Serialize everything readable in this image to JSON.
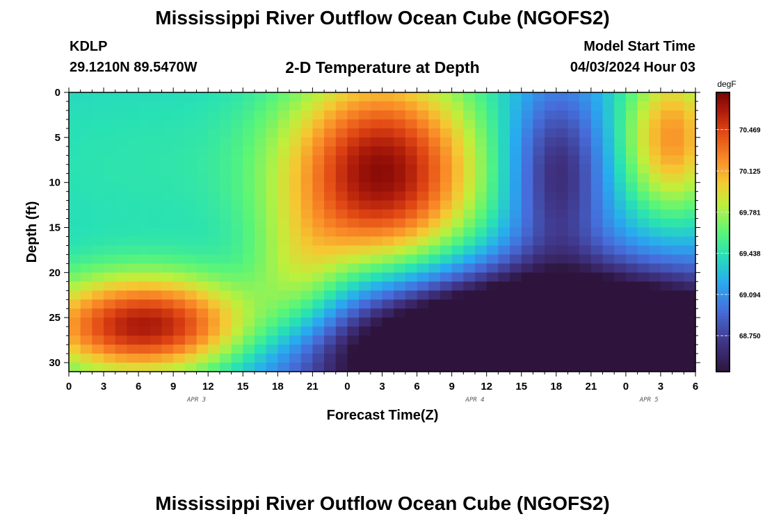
{
  "header": {
    "title": "Mississippi River Outflow Ocean Cube (NGOFS2)",
    "station_id": "KDLP",
    "station_coords": "29.1210N  89.5470W",
    "subtitle": "2-D Temperature at Depth",
    "model_label": "Model Start Time",
    "model_time": "04/03/2024 Hour 03"
  },
  "footer": {
    "title": "Mississippi River Outflow Ocean Cube (NGOFS2)"
  },
  "chart_data": {
    "type": "heatmap",
    "title": "2-D Temperature at Depth",
    "xlabel": "Forecast Time(Z)",
    "ylabel": "Depth (ft)",
    "units": "degF",
    "x_tick_labels": [
      "0",
      "3",
      "6",
      "9",
      "12",
      "15",
      "18",
      "21",
      "0",
      "3",
      "6",
      "9",
      "12",
      "15",
      "18",
      "21",
      "0",
      "3",
      "6"
    ],
    "x_range_hours": [
      0,
      54
    ],
    "date_labels": [
      {
        "label": "APR 3",
        "hour": 11
      },
      {
        "label": "APR 4",
        "hour": 35
      },
      {
        "label": "APR 5",
        "hour": 50
      }
    ],
    "y_ticks": [
      0,
      5,
      10,
      15,
      20,
      25,
      30
    ],
    "ylim": [
      0,
      31
    ],
    "y_inverted": true,
    "colorbar": {
      "ticks": [
        68.75,
        69.094,
        69.438,
        69.781,
        70.125,
        70.469
      ],
      "tick_labels": [
        "68.750",
        "69.094",
        "69.438",
        "69.781",
        "70.125",
        "70.469"
      ],
      "min": 68.45,
      "max": 70.78
    },
    "field_components": [
      {
        "kind": "base",
        "value": 69.3
      },
      {
        "kind": "gaussian",
        "amp": 0.15,
        "x": 6,
        "y": 8,
        "sx": 12,
        "sy": 9
      },
      {
        "kind": "gaussian",
        "amp": 1.4,
        "x": 7,
        "y": 26,
        "sx": 7,
        "sy": 4
      },
      {
        "kind": "gaussian",
        "amp": 1.4,
        "x": 27,
        "y": 9,
        "sx": 6,
        "sy": 8
      },
      {
        "kind": "gaussian",
        "amp": -0.7,
        "x": 42,
        "y": 9,
        "sx": 3,
        "sy": 7
      },
      {
        "kind": "gaussian",
        "amp": 0.9,
        "x": 52,
        "y": 5,
        "sx": 3,
        "sy": 6
      },
      {
        "kind": "gaussian",
        "amp": -2.2,
        "x": 42,
        "y": 29,
        "sx": 14,
        "sy": 6
      },
      {
        "kind": "gaussian",
        "amp": 0.4,
        "x": 20,
        "y": 21,
        "sx": 3,
        "sy": 5
      }
    ]
  }
}
